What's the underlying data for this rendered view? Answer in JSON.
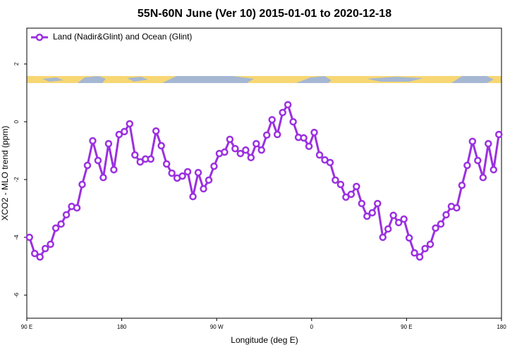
{
  "chart_data": {
    "type": "line",
    "title": "55N-60N June (Ver 10)   2015-01-01 to 2020-12-18",
    "xlabel": "Longitude (deg E)",
    "ylabel": "XCO2 - MLO trend (ppm)",
    "xlim": [
      90,
      540
    ],
    "xticks": [
      {
        "value": 90,
        "label": "90 E"
      },
      180,
      {
        "value": 270,
        "label": "90 W"
      },
      {
        "value": 360,
        "label": "0"
      },
      {
        "value": 450,
        "label": "90 E"
      },
      {
        "value": 540,
        "label": "180"
      }
    ],
    "ylim": [
      -6.8,
      3.24
    ],
    "yticks": [
      2,
      0,
      -2,
      -4,
      -6
    ],
    "legend": "top-left",
    "x": [
      92.5,
      97.5,
      102.5,
      107.5,
      112.5,
      117.5,
      122.5,
      127.5,
      132.5,
      137.5,
      142.5,
      147.5,
      152.5,
      157.5,
      162.5,
      167.5,
      172.5,
      177.5,
      182.5,
      187.5,
      192.5,
      197.5,
      202.5,
      207.5,
      212.5,
      217.5,
      222.5,
      227.5,
      232.5,
      237.5,
      242.5,
      247.5,
      252.5,
      257.5,
      262.5,
      267.5,
      272.5,
      277.5,
      282.5,
      287.5,
      292.5,
      297.5,
      302.5,
      307.5,
      312.5,
      317.5,
      322.5,
      327.5,
      332.5,
      337.5,
      342.5,
      347.5,
      352.5,
      357.5,
      362.5,
      367.5,
      372.5,
      377.5,
      382.5,
      387.5,
      392.5,
      397.5,
      402.5,
      407.5,
      412.5,
      417.5,
      422.5,
      427.5,
      432.5,
      437.5,
      442.5,
      447.5,
      452.5,
      457.5,
      462.5,
      467.5,
      472.5,
      477.5,
      482.5,
      487.5,
      492.5,
      497.5,
      502.5,
      507.5,
      512.5,
      517.5,
      522.5,
      527.5,
      532.5,
      537.5
    ],
    "series": [
      {
        "name": "Land (Nadir&Glint) and Ocean (Glint)",
        "color": "#9b30e0",
        "values": [
          -4.0,
          -4.56,
          -4.68,
          -4.39,
          -4.24,
          -3.68,
          -3.54,
          -3.22,
          -2.93,
          -2.98,
          -2.17,
          -1.51,
          -0.66,
          -1.34,
          -1.93,
          -0.76,
          -1.66,
          -0.44,
          -0.34,
          -0.07,
          -1.15,
          -1.39,
          -1.29,
          -1.29,
          -0.32,
          -0.83,
          -1.46,
          -1.78,
          -1.95,
          -1.88,
          -1.73,
          -2.59,
          -1.76,
          -2.32,
          -2.02,
          -1.54,
          -1.1,
          -1.05,
          -0.61,
          -0.93,
          -1.1,
          -0.98,
          -1.24,
          -0.76,
          -0.98,
          -0.46,
          0.07,
          -0.44,
          0.32,
          0.59,
          0,
          -0.54,
          -0.56,
          -0.85,
          -0.37,
          -1.15,
          -1.32,
          -1.41,
          -2.02,
          -2.17,
          -2.61,
          -2.51,
          -2.24,
          -2.83,
          -3.27,
          -3.15,
          -2.83,
          -4.0,
          -3.71,
          -3.24,
          -3.49,
          -3.37,
          -4.02,
          -4.54,
          -4.68,
          -4.39,
          -4.24,
          -3.68,
          -3.54,
          -3.22,
          -2.93,
          -2.98,
          -2.2,
          -1.51,
          -0.68,
          -1.34,
          -1.93,
          -0.76,
          -1.66,
          -0.44
        ]
      }
    ]
  }
}
